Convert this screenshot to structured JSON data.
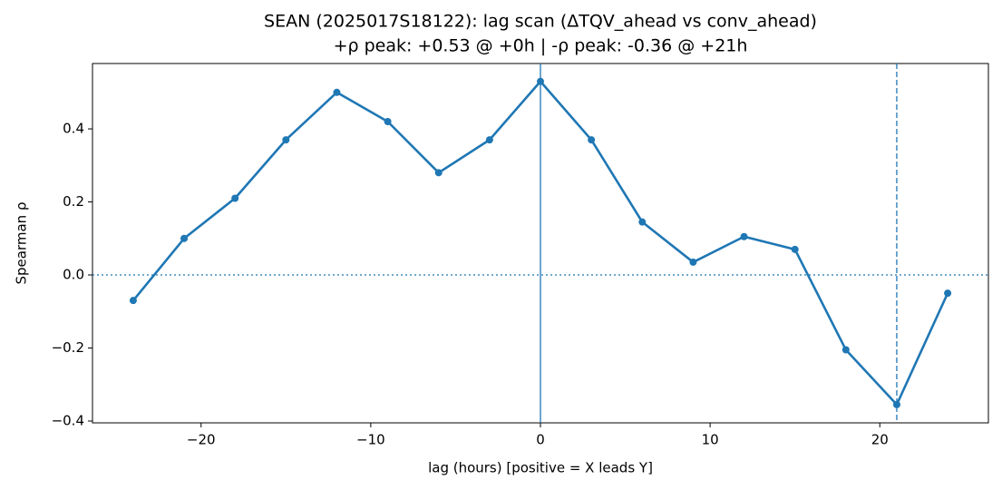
{
  "chart_data": {
    "type": "line",
    "title": "SEAN (2025017S18122): lag scan (ΔTQV_ahead vs conv_ahead)",
    "subtitle": "+ρ peak: +0.53 @ +0h | -ρ peak: -0.36 @ +21h",
    "x_label": "lag (hours) [positive = X leads Y]",
    "y_label": "Spearman ρ",
    "x": [
      -24,
      -21,
      -18,
      -15,
      -12,
      -9,
      -6,
      -3,
      0,
      3,
      6,
      9,
      12,
      15,
      18,
      21,
      24
    ],
    "values": [
      -0.07,
      0.1,
      0.21,
      0.37,
      0.5,
      0.42,
      0.28,
      0.37,
      0.53,
      0.37,
      0.145,
      0.035,
      0.105,
      0.07,
      -0.205,
      -0.355,
      -0.05
    ],
    "color": "#1f77b4",
    "xlim": [
      -26.4,
      26.4
    ],
    "ylim": [
      -0.405,
      0.579
    ],
    "xticks": [
      {
        "value": -20,
        "label": "−20"
      },
      {
        "value": -10,
        "label": "−10"
      },
      0,
      10,
      20
    ],
    "yticks": [
      {
        "value": -0.4,
        "label": "−0.4"
      },
      {
        "value": -0.2,
        "label": "−0.2"
      },
      {
        "value": 0,
        "label": "0.0"
      },
      0.2,
      0.4
    ],
    "vlines": [
      {
        "x": 0,
        "style": "solid"
      },
      {
        "x": 21,
        "style": "dashed"
      }
    ],
    "hlines": [
      {
        "y": 0,
        "style": "dotted"
      }
    ]
  }
}
